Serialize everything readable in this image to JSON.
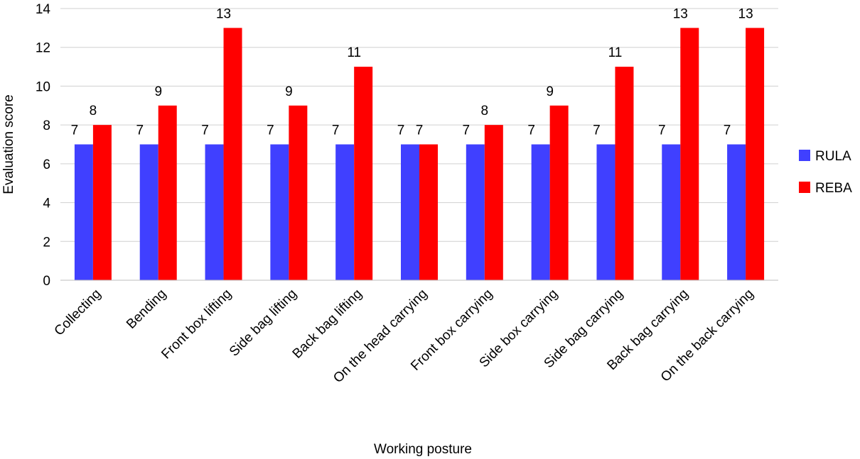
{
  "chart_data": {
    "type": "bar",
    "title": "",
    "xlabel": "Working posture",
    "ylabel": "Evaluation score",
    "ylim": [
      0,
      14
    ],
    "yticks": [
      0,
      2,
      4,
      6,
      8,
      10,
      12,
      14
    ],
    "grid": true,
    "legend_position": "right",
    "categories": [
      "Collecting",
      "Bending",
      "Front box lifting",
      "Side bag lifting",
      "Back bag lifting",
      "On the head carrying",
      "Front box carrying",
      "Side box carrying",
      "Side bag carrying",
      "Back bag carrying",
      "On the back carrying"
    ],
    "series": [
      {
        "name": "RULA",
        "color": "#4040ff",
        "values": [
          7,
          7,
          7,
          7,
          7,
          7,
          7,
          7,
          7,
          7,
          7
        ]
      },
      {
        "name": "REBA",
        "color": "#ff0000",
        "values": [
          8,
          9,
          13,
          9,
          11,
          7,
          8,
          9,
          11,
          13,
          13
        ]
      }
    ],
    "data_labels": true
  }
}
